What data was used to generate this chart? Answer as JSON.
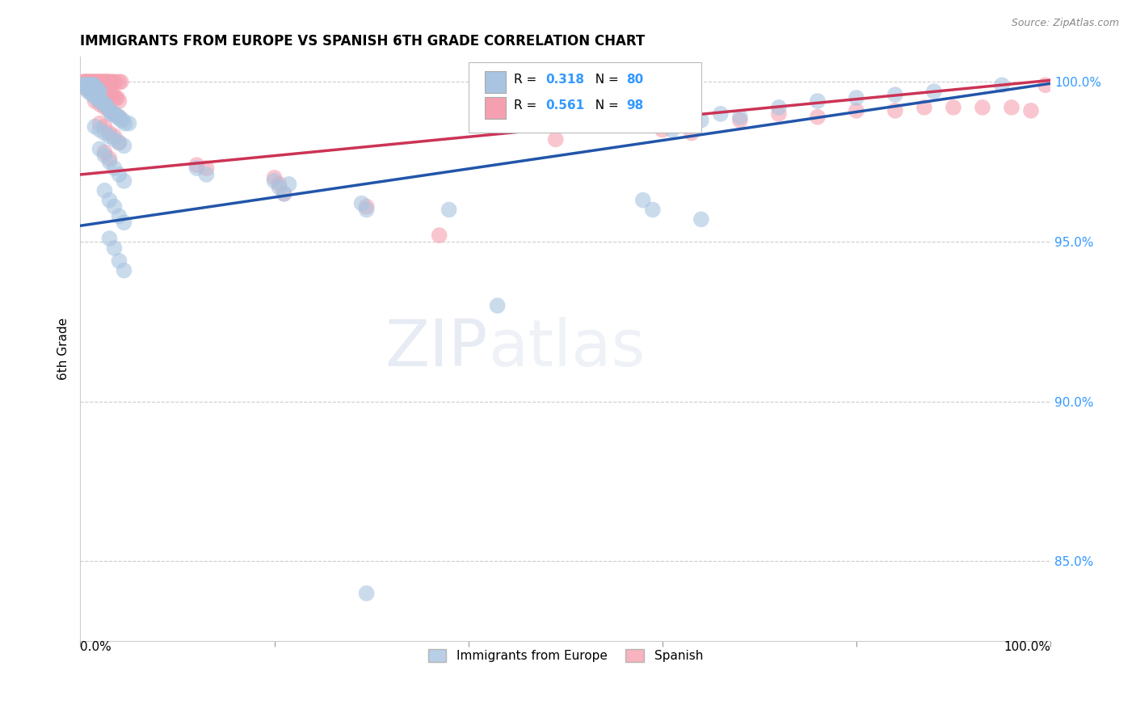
{
  "title": "IMMIGRANTS FROM EUROPE VS SPANISH 6TH GRADE CORRELATION CHART",
  "source": "Source: ZipAtlas.com",
  "ylabel": "6th Grade",
  "legend_label1": "Immigrants from Europe",
  "legend_label2": "Spanish",
  "R1": 0.318,
  "N1": 80,
  "R2": 0.561,
  "N2": 98,
  "color_blue": "#a8c4e0",
  "color_pink": "#f5a0b0",
  "line_color_blue": "#2255aa",
  "line_color_pink": "#cc3355",
  "watermark_zip": "ZIP",
  "watermark_atlas": "atlas",
  "xlim": [
    0.0,
    1.0
  ],
  "ylim": [
    0.825,
    1.008
  ],
  "hgrid_values": [
    0.85,
    0.9,
    0.95,
    1.0
  ],
  "blue_line_y_start": 0.955,
  "blue_line_y_end": 0.9995,
  "pink_line_y_start": 0.971,
  "pink_line_y_end": 1.0005,
  "blue_points": [
    [
      0.004,
      0.999
    ],
    [
      0.005,
      0.999
    ],
    [
      0.006,
      0.999
    ],
    [
      0.007,
      0.999
    ],
    [
      0.008,
      0.999
    ],
    [
      0.009,
      0.999
    ],
    [
      0.01,
      0.999
    ],
    [
      0.011,
      0.999
    ],
    [
      0.012,
      0.999
    ],
    [
      0.013,
      0.999
    ],
    [
      0.014,
      0.999
    ],
    [
      0.015,
      0.998
    ],
    [
      0.016,
      0.998
    ],
    [
      0.017,
      0.998
    ],
    [
      0.018,
      0.997
    ],
    [
      0.019,
      0.997
    ],
    [
      0.02,
      0.997
    ],
    [
      0.006,
      0.998
    ],
    [
      0.008,
      0.997
    ],
    [
      0.01,
      0.997
    ],
    [
      0.012,
      0.996
    ],
    [
      0.014,
      0.996
    ],
    [
      0.016,
      0.995
    ],
    [
      0.018,
      0.995
    ],
    [
      0.02,
      0.994
    ],
    [
      0.022,
      0.994
    ],
    [
      0.024,
      0.993
    ],
    [
      0.026,
      0.993
    ],
    [
      0.028,
      0.992
    ],
    [
      0.03,
      0.991
    ],
    [
      0.032,
      0.99
    ],
    [
      0.034,
      0.99
    ],
    [
      0.036,
      0.99
    ],
    [
      0.038,
      0.989
    ],
    [
      0.04,
      0.989
    ],
    [
      0.042,
      0.988
    ],
    [
      0.044,
      0.988
    ],
    [
      0.046,
      0.987
    ],
    [
      0.05,
      0.987
    ],
    [
      0.015,
      0.986
    ],
    [
      0.02,
      0.985
    ],
    [
      0.025,
      0.984
    ],
    [
      0.03,
      0.983
    ],
    [
      0.035,
      0.982
    ],
    [
      0.04,
      0.981
    ],
    [
      0.045,
      0.98
    ],
    [
      0.02,
      0.979
    ],
    [
      0.025,
      0.977
    ],
    [
      0.03,
      0.975
    ],
    [
      0.035,
      0.973
    ],
    [
      0.04,
      0.971
    ],
    [
      0.045,
      0.969
    ],
    [
      0.025,
      0.966
    ],
    [
      0.03,
      0.963
    ],
    [
      0.035,
      0.961
    ],
    [
      0.04,
      0.958
    ],
    [
      0.045,
      0.956
    ],
    [
      0.03,
      0.951
    ],
    [
      0.035,
      0.948
    ],
    [
      0.04,
      0.944
    ],
    [
      0.045,
      0.941
    ],
    [
      0.12,
      0.973
    ],
    [
      0.13,
      0.971
    ],
    [
      0.2,
      0.969
    ],
    [
      0.205,
      0.967
    ],
    [
      0.21,
      0.965
    ],
    [
      0.215,
      0.968
    ],
    [
      0.29,
      0.962
    ],
    [
      0.295,
      0.96
    ],
    [
      0.38,
      0.96
    ],
    [
      0.43,
      0.93
    ],
    [
      0.58,
      0.963
    ],
    [
      0.59,
      0.96
    ],
    [
      0.64,
      0.957
    ],
    [
      0.295,
      0.84
    ],
    [
      0.61,
      0.985
    ],
    [
      0.64,
      0.988
    ],
    [
      0.66,
      0.99
    ],
    [
      0.68,
      0.989
    ],
    [
      0.72,
      0.992
    ],
    [
      0.76,
      0.994
    ],
    [
      0.8,
      0.995
    ],
    [
      0.84,
      0.996
    ],
    [
      0.88,
      0.997
    ],
    [
      0.95,
      0.999
    ]
  ],
  "pink_points": [
    [
      0.003,
      1.0
    ],
    [
      0.004,
      1.0
    ],
    [
      0.005,
      1.0
    ],
    [
      0.006,
      1.0
    ],
    [
      0.007,
      1.0
    ],
    [
      0.008,
      1.0
    ],
    [
      0.009,
      1.0
    ],
    [
      0.01,
      1.0
    ],
    [
      0.011,
      1.0
    ],
    [
      0.012,
      1.0
    ],
    [
      0.013,
      1.0
    ],
    [
      0.014,
      1.0
    ],
    [
      0.015,
      1.0
    ],
    [
      0.016,
      1.0
    ],
    [
      0.017,
      1.0
    ],
    [
      0.018,
      1.0
    ],
    [
      0.019,
      1.0
    ],
    [
      0.02,
      1.0
    ],
    [
      0.021,
      1.0
    ],
    [
      0.022,
      1.0
    ],
    [
      0.023,
      1.0
    ],
    [
      0.024,
      1.0
    ],
    [
      0.025,
      1.0
    ],
    [
      0.026,
      1.0
    ],
    [
      0.027,
      1.0
    ],
    [
      0.028,
      1.0
    ],
    [
      0.029,
      1.0
    ],
    [
      0.03,
      1.0
    ],
    [
      0.032,
      1.0
    ],
    [
      0.034,
      1.0
    ],
    [
      0.036,
      1.0
    ],
    [
      0.04,
      1.0
    ],
    [
      0.042,
      1.0
    ],
    [
      0.006,
      0.998
    ],
    [
      0.008,
      0.998
    ],
    [
      0.01,
      0.998
    ],
    [
      0.012,
      0.998
    ],
    [
      0.014,
      0.998
    ],
    [
      0.016,
      0.998
    ],
    [
      0.018,
      0.998
    ],
    [
      0.02,
      0.998
    ],
    [
      0.022,
      0.998
    ],
    [
      0.024,
      0.997
    ],
    [
      0.026,
      0.997
    ],
    [
      0.028,
      0.997
    ],
    [
      0.03,
      0.997
    ],
    [
      0.032,
      0.996
    ],
    [
      0.034,
      0.996
    ],
    [
      0.036,
      0.995
    ],
    [
      0.038,
      0.995
    ],
    [
      0.04,
      0.994
    ],
    [
      0.015,
      0.994
    ],
    [
      0.02,
      0.993
    ],
    [
      0.025,
      0.992
    ],
    [
      0.03,
      0.991
    ],
    [
      0.035,
      0.99
    ],
    [
      0.04,
      0.989
    ],
    [
      0.02,
      0.987
    ],
    [
      0.025,
      0.986
    ],
    [
      0.03,
      0.984
    ],
    [
      0.035,
      0.983
    ],
    [
      0.04,
      0.981
    ],
    [
      0.025,
      0.978
    ],
    [
      0.03,
      0.976
    ],
    [
      0.12,
      0.974
    ],
    [
      0.13,
      0.973
    ],
    [
      0.2,
      0.97
    ],
    [
      0.205,
      0.968
    ],
    [
      0.21,
      0.965
    ],
    [
      0.295,
      0.961
    ],
    [
      0.37,
      0.952
    ],
    [
      0.49,
      0.982
    ],
    [
      0.6,
      0.985
    ],
    [
      0.63,
      0.984
    ],
    [
      0.68,
      0.988
    ],
    [
      0.72,
      0.99
    ],
    [
      0.76,
      0.989
    ],
    [
      0.8,
      0.991
    ],
    [
      0.84,
      0.991
    ],
    [
      0.87,
      0.992
    ],
    [
      0.9,
      0.992
    ],
    [
      0.93,
      0.992
    ],
    [
      0.96,
      0.992
    ],
    [
      0.98,
      0.991
    ],
    [
      0.995,
      0.999
    ]
  ]
}
